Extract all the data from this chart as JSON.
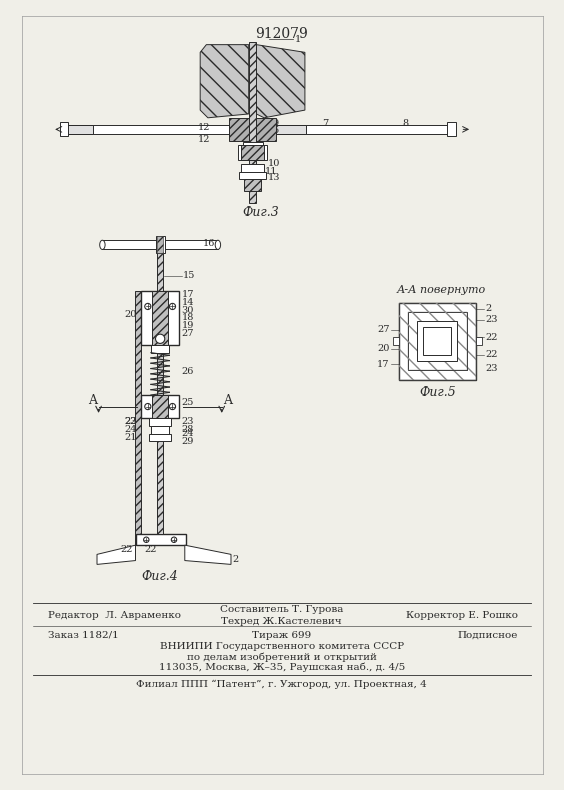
{
  "patent_number": "912079",
  "fig3_label": "Фиг.3",
  "fig4_label": "Фиг.4",
  "fig5_label": "Фиг.5",
  "fig5_title": "А-А повернуто",
  "editor_line": "Редактор  Л. Авраменко",
  "composer_line": "Составитель Т. Гурова",
  "tech_line": "Техред Ж.Кастелевич",
  "corrector_line": "Корректор Е. Рошко",
  "order_line": "Заказ 1182/1",
  "tirazh_line": "Тираж 699",
  "podpisnoe_line": "Подписное",
  "vnipi_line1": "ВНИИПИ Государственного комитета СССР",
  "vnipi_line2": "по делам изобретений и открытий",
  "vnipi_line3": "113035, Москва, Ж–35, Раушская наб., д. 4/5",
  "filial_line": "Филиал ППП “Патент”, г. Ужгород, ул. Проектная, 4",
  "bg_color": "#f0efe8",
  "line_color": "#2a2a2a"
}
